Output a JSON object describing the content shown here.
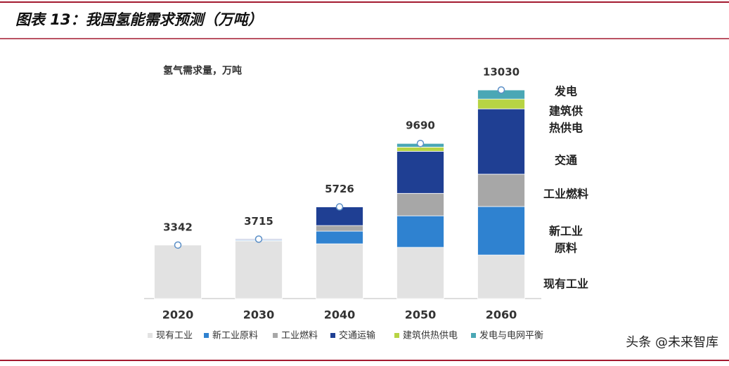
{
  "header": {
    "title": "图表 13：我国氢能需求预测（万吨）"
  },
  "chart_data": {
    "type": "stacked_bar",
    "subtitle": "氢气需求量，万吨",
    "categories": [
      "2020",
      "2030",
      "2040",
      "2050",
      "2060"
    ],
    "series": [
      {
        "name": "现有工业",
        "color": "#e2e2e2",
        "values": [
          3342,
          3600,
          3420,
          3200,
          2720
        ]
      },
      {
        "name": "新工业原料",
        "color": "#2f82d0",
        "values": [
          0,
          50,
          790,
          1970,
          3030
        ]
      },
      {
        "name": "工业燃料",
        "color": "#a7a7a7",
        "values": [
          0,
          15,
          350,
          1400,
          2020
        ]
      },
      {
        "name": "交通运输",
        "color": "#1f3f93",
        "values": [
          0,
          50,
          1166,
          2630,
          4080
        ]
      },
      {
        "name": "建筑供热供电",
        "color": "#b7d444",
        "values": [
          0,
          0,
          0,
          260,
          610
        ]
      },
      {
        "name": "发电与电网平衡",
        "color": "#4aa7b5",
        "values": [
          0,
          0,
          0,
          230,
          570
        ]
      }
    ],
    "totals": [
      3342,
      3715,
      5726,
      9690,
      13030
    ],
    "ylim": [
      0,
      14000
    ],
    "annotations": [
      [
        "发电"
      ],
      [
        "建筑供",
        "热供电"
      ],
      [
        "交通"
      ],
      [
        "工业燃料"
      ],
      [
        "新工业",
        "原料"
      ],
      [
        "现有工业"
      ]
    ]
  },
  "watermark": "头条 @未来智库"
}
